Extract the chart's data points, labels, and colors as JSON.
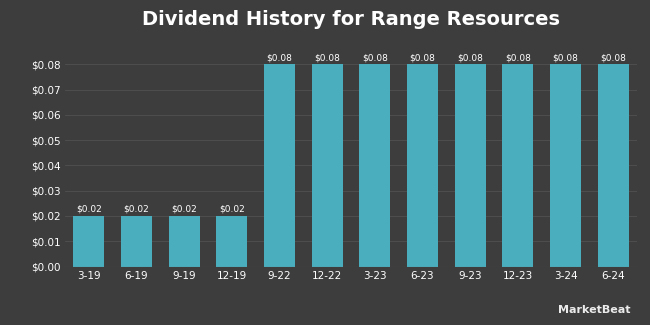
{
  "title": "Dividend History for Range Resources",
  "categories": [
    "3-19",
    "6-19",
    "9-19",
    "12-19",
    "9-22",
    "12-22",
    "3-23",
    "6-23",
    "9-23",
    "12-23",
    "3-24",
    "6-24"
  ],
  "values": [
    0.02,
    0.02,
    0.02,
    0.02,
    0.08,
    0.08,
    0.08,
    0.08,
    0.08,
    0.08,
    0.08,
    0.08
  ],
  "bar_color": "#4baebe",
  "background_color": "#3d3d3d",
  "plot_bg_color": "#3d3d3d",
  "text_color": "#ffffff",
  "grid_color": "#555555",
  "bar_labels": [
    "$0.02",
    "$0.02",
    "$0.02",
    "$0.02",
    "$0.08",
    "$0.08",
    "$0.08",
    "$0.08",
    "$0.08",
    "$0.08",
    "$0.08",
    "$0.08"
  ],
  "ylim": [
    0,
    0.09
  ],
  "yticks": [
    0.0,
    0.01,
    0.02,
    0.03,
    0.04,
    0.05,
    0.06,
    0.07,
    0.08
  ],
  "ytick_labels": [
    "$0.00",
    "$0.01",
    "$0.02",
    "$0.03",
    "$0.04",
    "$0.05",
    "$0.06",
    "$0.07",
    "$0.08"
  ],
  "title_fontsize": 14,
  "tick_fontsize": 7.5,
  "label_fontsize": 6.5,
  "watermark": "MarketBeat"
}
